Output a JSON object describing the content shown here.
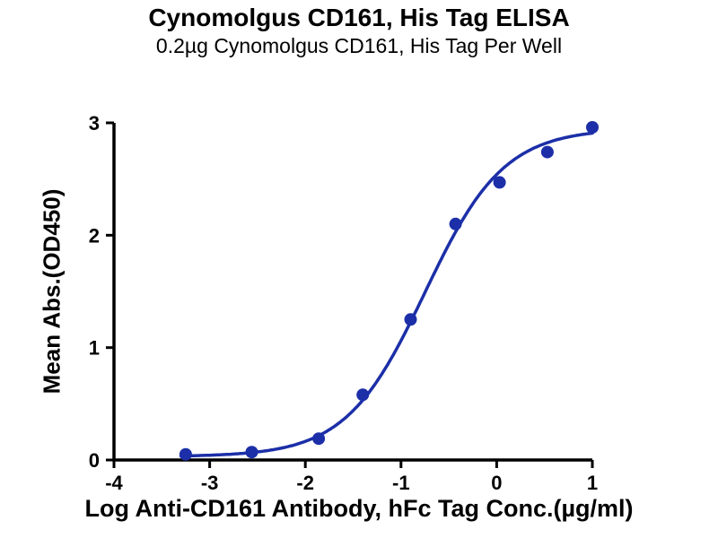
{
  "header": {
    "title": "Cynomolgus CD161, His Tag ELISA",
    "subtitle": "0.2µg Cynomolgus CD161, His Tag Per Well"
  },
  "chart_data": {
    "type": "scatter",
    "title": "Cynomolgus CD161, His Tag ELISA",
    "subtitle": "0.2µg Cynomolgus CD161, His Tag Per Well",
    "xlabel": "Log Anti-CD161 Antibody, hFc Tag Conc.(µg/ml)",
    "ylabel": "Mean Abs.(OD450)",
    "xlim": [
      -4,
      1
    ],
    "ylim": [
      0,
      3
    ],
    "x_ticks": [
      -4,
      -3,
      -2,
      -1,
      0,
      1
    ],
    "y_ticks": [
      0,
      1,
      2,
      3
    ],
    "grid": false,
    "legend": "none",
    "marker_color": "#1c2fa8",
    "line_color": "#1c2fa8",
    "points": [
      {
        "x": -3.25,
        "y": 0.05
      },
      {
        "x": -2.56,
        "y": 0.07
      },
      {
        "x": -1.86,
        "y": 0.19
      },
      {
        "x": -1.4,
        "y": 0.58
      },
      {
        "x": -0.9,
        "y": 1.25
      },
      {
        "x": -0.43,
        "y": 2.1
      },
      {
        "x": 0.03,
        "y": 2.47
      },
      {
        "x": 0.53,
        "y": 2.74
      },
      {
        "x": 1.0,
        "y": 2.96
      }
    ],
    "fit_curve": {
      "model": "4PL-sigmoid",
      "bottom": 0.03,
      "top": 2.95,
      "log_ec50": -0.75,
      "hill": 1.05
    },
    "curve_x_range": [
      -3.3,
      1.0
    ]
  }
}
